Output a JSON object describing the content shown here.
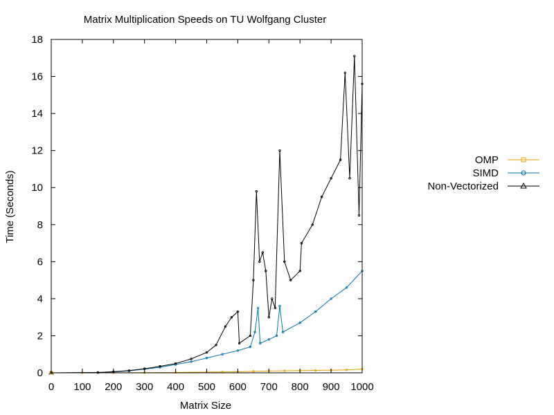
{
  "chart_data": {
    "type": "line",
    "title": "Matrix Multiplication Speeds on TU Wolfgang Cluster",
    "xlabel": "Matrix Size",
    "ylabel": "Time (Seconds)",
    "xlim": [
      0,
      1000
    ],
    "ylim": [
      0,
      18
    ],
    "xticks": [
      "0",
      "100",
      "200",
      "300",
      "400",
      "500",
      "600",
      "700",
      "800",
      "900",
      "1000"
    ],
    "yticks": [
      "0",
      "2",
      "4",
      "6",
      "8",
      "10",
      "12",
      "14",
      "16",
      "18"
    ],
    "grid": false,
    "legend_position": "right",
    "series": [
      {
        "name": "OMP",
        "color": "#e69f00",
        "marker": "square",
        "points": [
          [
            0,
            0
          ],
          [
            100,
            0
          ],
          [
            200,
            0.005
          ],
          [
            300,
            0.01
          ],
          [
            400,
            0.02
          ],
          [
            500,
            0.04
          ],
          [
            550,
            0.05
          ],
          [
            600,
            0.06
          ],
          [
            650,
            0.08
          ],
          [
            700,
            0.1
          ],
          [
            750,
            0.11
          ],
          [
            800,
            0.12
          ],
          [
            850,
            0.13
          ],
          [
            900,
            0.14
          ],
          [
            950,
            0.16
          ],
          [
            1000,
            0.2
          ]
        ]
      },
      {
        "name": "SIMD",
        "color": "#0072b2",
        "marker": "circle",
        "points": [
          [
            0,
            0
          ],
          [
            150,
            0.02
          ],
          [
            200,
            0.05
          ],
          [
            250,
            0.1
          ],
          [
            300,
            0.2
          ],
          [
            350,
            0.3
          ],
          [
            400,
            0.45
          ],
          [
            450,
            0.6
          ],
          [
            500,
            0.8
          ],
          [
            550,
            1.0
          ],
          [
            600,
            1.2
          ],
          [
            640,
            1.4
          ],
          [
            655,
            2.2
          ],
          [
            665,
            3.5
          ],
          [
            672,
            1.6
          ],
          [
            700,
            1.8
          ],
          [
            725,
            2.0
          ],
          [
            735,
            3.6
          ],
          [
            745,
            2.2
          ],
          [
            800,
            2.7
          ],
          [
            850,
            3.3
          ],
          [
            900,
            4.0
          ],
          [
            950,
            4.6
          ],
          [
            1000,
            5.5
          ]
        ]
      },
      {
        "name": "Non-Vectorized",
        "color": "#000000",
        "marker": "triangle",
        "points": [
          [
            0,
            0
          ],
          [
            150,
            0.02
          ],
          [
            200,
            0.06
          ],
          [
            250,
            0.12
          ],
          [
            300,
            0.22
          ],
          [
            350,
            0.35
          ],
          [
            400,
            0.5
          ],
          [
            450,
            0.75
          ],
          [
            500,
            1.1
          ],
          [
            530,
            1.5
          ],
          [
            560,
            2.5
          ],
          [
            580,
            3.0
          ],
          [
            600,
            3.3
          ],
          [
            605,
            1.6
          ],
          [
            640,
            2.0
          ],
          [
            650,
            5.0
          ],
          [
            660,
            9.8
          ],
          [
            670,
            6.0
          ],
          [
            680,
            6.5
          ],
          [
            690,
            5.5
          ],
          [
            700,
            3.0
          ],
          [
            710,
            4.0
          ],
          [
            720,
            3.5
          ],
          [
            735,
            12.0
          ],
          [
            750,
            6.0
          ],
          [
            770,
            5.0
          ],
          [
            800,
            5.5
          ],
          [
            805,
            7.0
          ],
          [
            840,
            8.0
          ],
          [
            870,
            9.5
          ],
          [
            900,
            10.5
          ],
          [
            930,
            11.5
          ],
          [
            945,
            16.2
          ],
          [
            960,
            10.5
          ],
          [
            975,
            17.1
          ],
          [
            990,
            8.5
          ],
          [
            1000,
            15.6
          ]
        ]
      }
    ]
  }
}
